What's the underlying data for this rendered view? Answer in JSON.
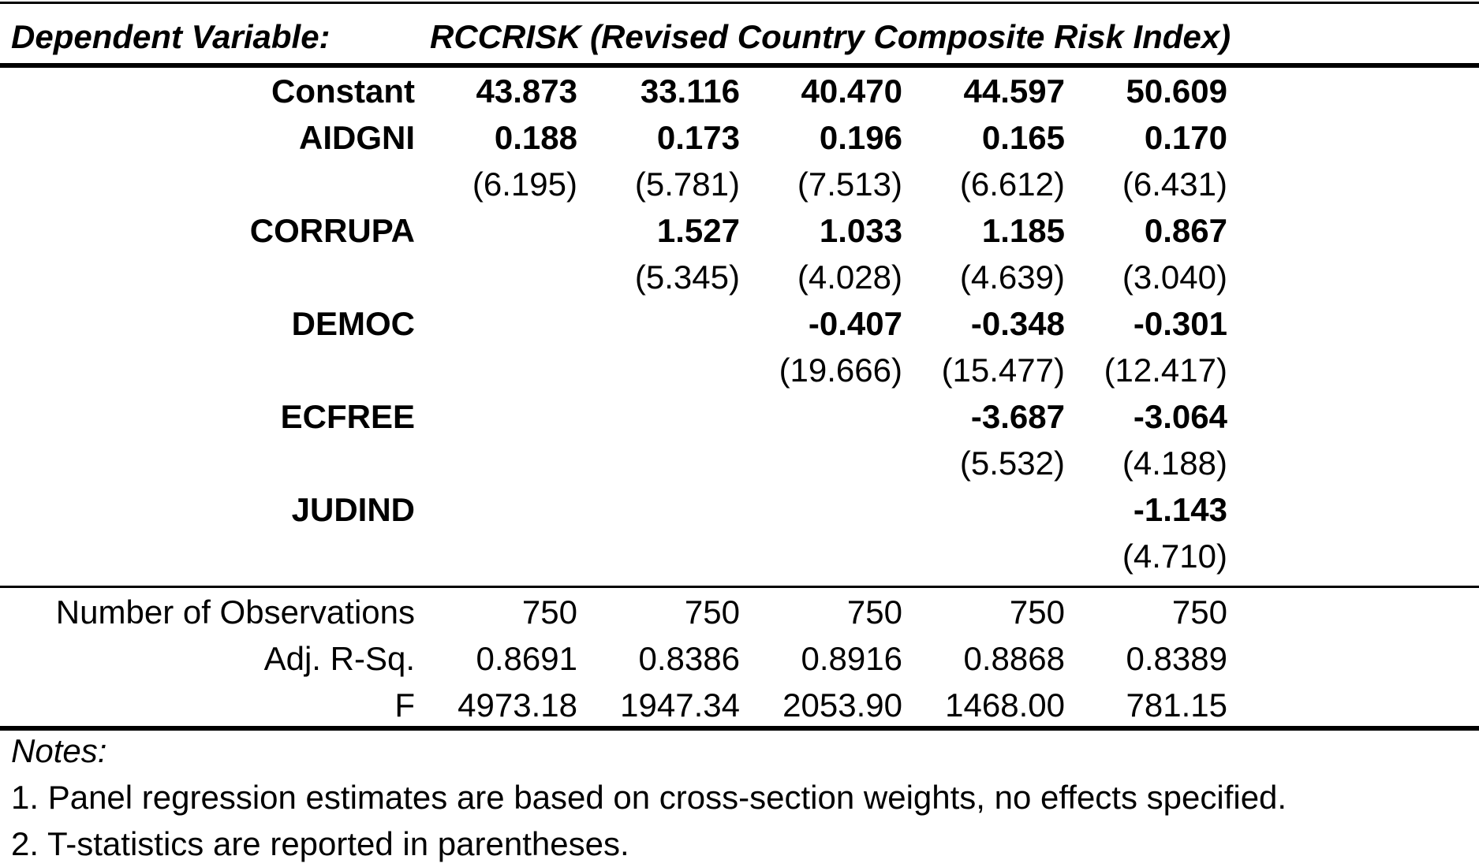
{
  "header": {
    "dep_label": "Dependent Variable:",
    "dep_name": "RCCRISK (Revised Country Composite Risk Index)"
  },
  "coef_rows": [
    {
      "label": "Constant",
      "bold": true,
      "values": [
        "43.873",
        "33.116",
        "40.470",
        "44.597",
        "50.609"
      ]
    },
    {
      "label": "AIDGNI",
      "bold": true,
      "values": [
        "0.188",
        "0.173",
        "0.196",
        "0.165",
        "0.170"
      ]
    },
    {
      "label": "",
      "bold": false,
      "values": [
        "(6.195)",
        "(5.781)",
        "(7.513)",
        "(6.612)",
        "(6.431)"
      ]
    },
    {
      "label": "CORRUPA",
      "bold": true,
      "values": [
        "",
        "1.527",
        "1.033",
        "1.185",
        "0.867"
      ]
    },
    {
      "label": "",
      "bold": false,
      "values": [
        "",
        "(5.345)",
        "(4.028)",
        "(4.639)",
        "(3.040)"
      ]
    },
    {
      "label": "DEMOC",
      "bold": true,
      "values": [
        "",
        "",
        "-0.407",
        "-0.348",
        "-0.301"
      ]
    },
    {
      "label": "",
      "bold": false,
      "values": [
        "",
        "",
        "(19.666)",
        "(15.477)",
        "(12.417)"
      ]
    },
    {
      "label": "ECFREE",
      "bold": true,
      "values": [
        "",
        "",
        "",
        "-3.687",
        "-3.064"
      ]
    },
    {
      "label": "",
      "bold": false,
      "values": [
        "",
        "",
        "",
        "(5.532)",
        "(4.188)"
      ]
    },
    {
      "label": "JUDIND",
      "bold": true,
      "values": [
        "",
        "",
        "",
        "",
        "-1.143"
      ]
    },
    {
      "label": "",
      "bold": false,
      "values": [
        "",
        "",
        "",
        "",
        "(4.710)"
      ]
    }
  ],
  "stat_rows": [
    {
      "label": "Number of Observations",
      "values": [
        "750",
        "750",
        "750",
        "750",
        "750"
      ]
    },
    {
      "label": "Adj. R-Sq.",
      "values": [
        "0.8691",
        "0.8386",
        "0.8916",
        "0.8868",
        "0.8389"
      ]
    },
    {
      "label": "F",
      "values": [
        "4973.18",
        "1947.34",
        "2053.90",
        "1468.00",
        "781.15"
      ]
    }
  ],
  "notes": {
    "title": "Notes:",
    "items": [
      "1. Panel regression estimates are based on cross-section weights, no effects specified.",
      "2. T-statistics are reported in parentheses."
    ]
  }
}
